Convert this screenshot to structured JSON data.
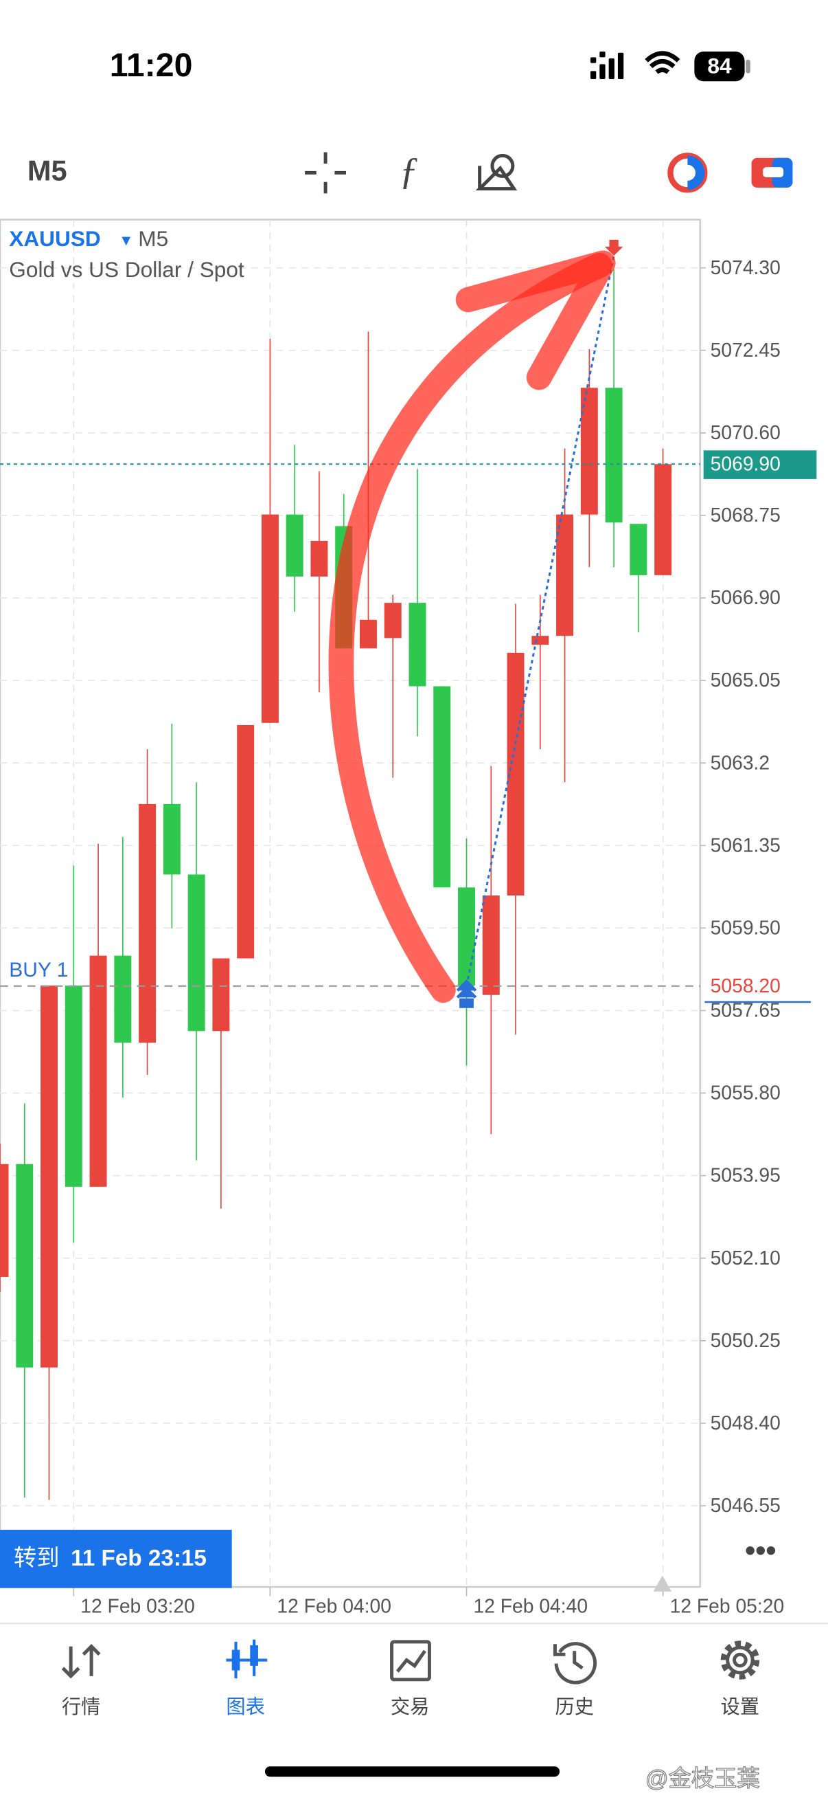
{
  "status_bar": {
    "time": "11:20",
    "battery": "84"
  },
  "toolbar": {
    "timeframe": "M5"
  },
  "chart_data": {
    "type": "candlestick",
    "symbol": "XAUUSD",
    "timeframe": "M5",
    "description": "Gold vs US Dollar / Spot",
    "categories": [
      null,
      null,
      null,
      "12 Feb 03:20",
      null,
      null,
      null,
      null,
      null,
      null,
      null,
      "12 Feb 04:00",
      null,
      null,
      null,
      null,
      null,
      null,
      null,
      "12 Feb 04:40",
      null,
      null,
      null,
      null,
      null,
      null,
      null,
      "12 Feb 05:20"
    ],
    "open": [
      5051.68,
      5054.21,
      5049.65,
      5058.21,
      5053.7,
      5058.88,
      5056.93,
      5062.28,
      5060.7,
      5057.19,
      5058.82,
      5064.1,
      5068.77,
      5067.38,
      5068.51,
      5065.77,
      5066.0,
      5066.79,
      5064.92,
      5060.41,
      5058.0,
      5060.23,
      5065.85,
      5066.05,
      5068.77,
      5071.61,
      5068.56,
      5067.41
    ],
    "high": [
      5054.67,
      5055.57,
      5058.21,
      5060.9,
      5061.39,
      5061.54,
      5063.51,
      5064.08,
      5062.77,
      5058.82,
      5064.05,
      5072.71,
      5070.33,
      5069.74,
      5069.23,
      5072.87,
      5066.97,
      5069.79,
      5064.92,
      5061.51,
      5063.13,
      5066.77,
      5066.97,
      5070.25,
      5072.48,
      5074.27,
      5068.56,
      5070.25
    ],
    "low": [
      5051.34,
      5046.73,
      5046.68,
      5052.45,
      5053.7,
      5055.7,
      5056.21,
      5059.49,
      5054.29,
      5053.21,
      5058.82,
      5064.1,
      5066.59,
      5064.79,
      5065.77,
      5065.77,
      5062.87,
      5063.8,
      5060.41,
      5056.42,
      5054.88,
      5057.11,
      5063.51,
      5062.77,
      5067.59,
      5067.59,
      5066.13,
      5067.41
    ],
    "close": [
      5054.21,
      5049.65,
      5058.21,
      5053.7,
      5058.88,
      5056.93,
      5062.28,
      5060.7,
      5057.19,
      5058.82,
      5064.05,
      5068.77,
      5067.38,
      5068.18,
      5065.77,
      5066.41,
      5066.79,
      5064.92,
      5060.41,
      5058.21,
      5060.23,
      5065.67,
      5066.05,
      5068.77,
      5071.61,
      5068.59,
      5067.41,
      5069.9
    ],
    "up_color": "#e8453c",
    "down_color": "#2ec84f",
    "ylim": [
      5044.73,
      5075.38
    ],
    "yticks": [
      {
        "value": 5074.3,
        "label": "5074.30"
      },
      5072.45,
      {
        "value": 5070.6,
        "label": "5070.60"
      },
      5068.75,
      {
        "value": 5066.9,
        "label": "5066.90"
      },
      5065.05,
      5063.2,
      5061.35,
      {
        "value": 5059.5,
        "label": "5059.50"
      },
      5057.65,
      {
        "value": 5055.8,
        "label": "5055.80"
      },
      5053.95,
      {
        "value": 5052.1,
        "label": "5052.10"
      },
      5050.25,
      {
        "value": 5048.4,
        "label": "5048.40"
      },
      5046.55
    ],
    "grid": true,
    "current_price": {
      "value": 5069.9,
      "label": "5069.90"
    },
    "position": {
      "label": "BUY 1",
      "price": 5058.2,
      "price_label": "5058.20"
    },
    "exit_price": 5074.57,
    "goto": {
      "prefix": "转到",
      "time": "11 Feb 23:15"
    }
  },
  "nav": {
    "items": [
      "行情",
      "图表",
      "交易",
      "历史",
      "设置"
    ]
  },
  "watermark": "@金枝玉葉"
}
